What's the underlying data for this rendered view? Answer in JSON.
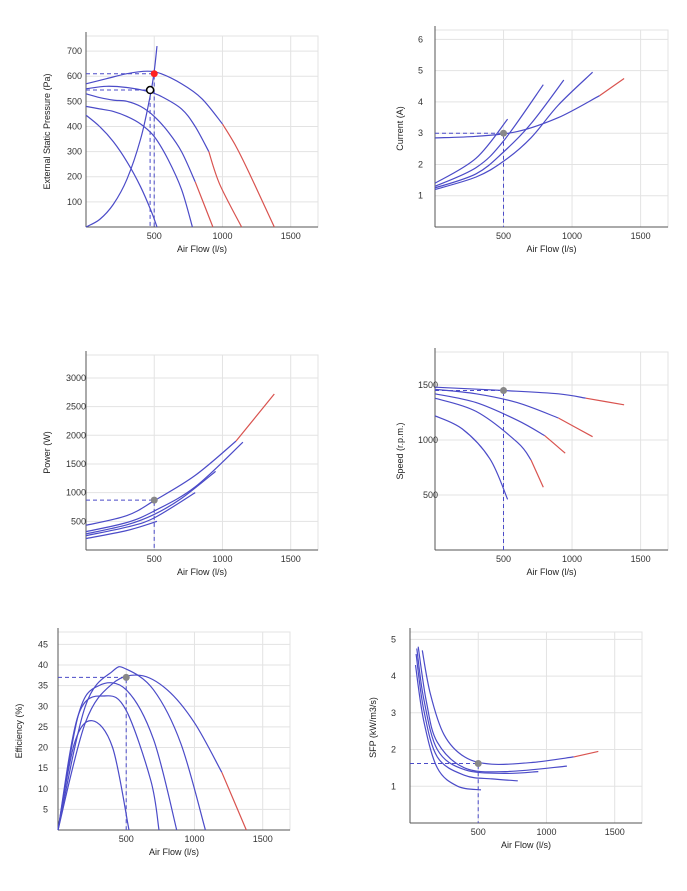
{
  "colors": {
    "curve": "#4b4bc8",
    "overload": "#d9534f",
    "guide": "#4b4bc8",
    "duty_point": "#ff2020",
    "operating_marker": "#888888"
  },
  "chart_data": [
    {
      "id": "pressure",
      "type": "line",
      "xlabel": "Air Flow (l/s)",
      "ylabel": "External Static Pressure (Pa)",
      "xlim": [
        0,
        1700
      ],
      "ylim": [
        0,
        760
      ],
      "xticks": [
        500,
        1000,
        1500
      ],
      "yticks": [
        100,
        200,
        300,
        400,
        500,
        600,
        700
      ],
      "grid": true,
      "series": [
        {
          "points": [
            [
              0,
              570
            ],
            [
              150,
              590
            ],
            [
              300,
              610
            ],
            [
              450,
              620
            ],
            [
              550,
              610
            ],
            [
              700,
              570
            ],
            [
              850,
              510
            ],
            [
              1000,
              410
            ],
            [
              1100,
              320
            ],
            [
              1200,
              210
            ]
          ],
          "overload_from": 950,
          "end": [
            1380,
            0
          ]
        },
        {
          "points": [
            [
              0,
              550
            ],
            [
              150,
              560
            ],
            [
              300,
              555
            ],
            [
              450,
              540
            ],
            [
              550,
              520
            ],
            [
              700,
              470
            ],
            [
              800,
              400
            ],
            [
              900,
              300
            ],
            [
              980,
              170
            ]
          ],
          "overload_from": 830,
          "end": [
            1140,
            0
          ]
        },
        {
          "points": [
            [
              0,
              530
            ],
            [
              100,
              515
            ],
            [
              200,
              505
            ],
            [
              300,
              500
            ],
            [
              400,
              480
            ],
            [
              500,
              440
            ],
            [
              600,
              380
            ],
            [
              700,
              300
            ],
            [
              800,
              180
            ]
          ],
          "overload_from": 780,
          "end": [
            930,
            0
          ]
        },
        {
          "points": [
            [
              0,
              480
            ],
            [
              100,
              470
            ],
            [
              200,
              460
            ],
            [
              300,
              440
            ],
            [
              400,
              410
            ],
            [
              500,
              360
            ],
            [
              600,
              270
            ],
            [
              700,
              150
            ],
            [
              780,
              0
            ]
          ]
        },
        {
          "points": [
            [
              0,
              445
            ],
            [
              100,
              400
            ],
            [
              200,
              340
            ],
            [
              300,
              260
            ],
            [
              400,
              160
            ],
            [
              480,
              60
            ],
            [
              520,
              0
            ]
          ]
        },
        {
          "points": [
            [
              0,
              0
            ],
            [
              100,
              30
            ],
            [
              200,
              90
            ],
            [
              300,
              190
            ],
            [
              400,
              350
            ],
            [
              470,
              520
            ],
            [
              500,
              620
            ],
            [
              520,
              720
            ]
          ]
        }
      ],
      "operating_point": {
        "x": 500,
        "y": 610
      },
      "required_point": {
        "x": 470,
        "y": 545
      }
    },
    {
      "id": "current",
      "type": "line",
      "xlabel": "Air Flow (l/s)",
      "ylabel": "Current (A)",
      "xlim": [
        0,
        1700
      ],
      "ylim": [
        0,
        6.3
      ],
      "xticks": [
        500,
        1000,
        1500
      ],
      "yticks": [
        1,
        2,
        3,
        4,
        5,
        6
      ],
      "grid": true,
      "series": [
        {
          "points": [
            [
              0,
              2.85
            ],
            [
              300,
              2.9
            ],
            [
              600,
              3.05
            ],
            [
              900,
              3.5
            ],
            [
              1200,
              4.2
            ],
            [
              1380,
              4.75
            ]
          ],
          "overload_from": 1100
        },
        {
          "points": [
            [
              0,
              1.2
            ],
            [
              300,
              1.6
            ],
            [
              500,
              2.1
            ],
            [
              700,
              2.85
            ],
            [
              900,
              3.9
            ],
            [
              1150,
              4.95
            ]
          ],
          "overload_from": 950
        },
        {
          "points": [
            [
              0,
              1.25
            ],
            [
              300,
              1.7
            ],
            [
              500,
              2.4
            ],
            [
              700,
              3.3
            ],
            [
              940,
              4.7
            ]
          ],
          "overload_from": 780
        },
        {
          "points": [
            [
              0,
              1.3
            ],
            [
              300,
              1.9
            ],
            [
              500,
              2.75
            ],
            [
              790,
              4.55
            ]
          ],
          "overload_from": 650
        },
        {
          "points": [
            [
              0,
              1.4
            ],
            [
              300,
              2.2
            ],
            [
              530,
              3.45
            ]
          ]
        }
      ],
      "operating_point": {
        "x": 500,
        "y": 3.0
      }
    },
    {
      "id": "power",
      "type": "line",
      "xlabel": "Air Flow (l/s)",
      "ylabel": "Power (W)",
      "xlim": [
        0,
        1700
      ],
      "ylim": [
        0,
        3400
      ],
      "xticks": [
        500,
        1000,
        1500
      ],
      "yticks": [
        500,
        1000,
        1500,
        2000,
        2500,
        3000
      ],
      "grid": true,
      "series": [
        {
          "points": [
            [
              0,
              430
            ],
            [
              300,
              600
            ],
            [
              500,
              860
            ],
            [
              800,
              1300
            ],
            [
              1100,
              1900
            ],
            [
              1380,
              2720
            ]
          ],
          "overload_from": 1050
        },
        {
          "points": [
            [
              0,
              320
            ],
            [
              300,
              480
            ],
            [
              500,
              680
            ],
            [
              800,
              1100
            ],
            [
              1150,
              1880
            ]
          ],
          "overload_from": 980
        },
        {
          "points": [
            [
              0,
              280
            ],
            [
              300,
              440
            ],
            [
              500,
              620
            ],
            [
              700,
              900
            ],
            [
              950,
              1370
            ]
          ],
          "overload_from": 820
        },
        {
          "points": [
            [
              0,
              250
            ],
            [
              300,
              400
            ],
            [
              500,
              560
            ],
            [
              800,
              1000
            ]
          ],
          "overload_from": 680
        },
        {
          "points": [
            [
              0,
              200
            ],
            [
              300,
              340
            ],
            [
              520,
              500
            ]
          ]
        }
      ],
      "operating_point": {
        "x": 500,
        "y": 870
      }
    },
    {
      "id": "speed",
      "type": "line",
      "xlabel": "Air Flow (l/s)",
      "ylabel": "Speed (r.p.m.)",
      "xlim": [
        0,
        1700
      ],
      "ylim": [
        0,
        1800
      ],
      "xticks": [
        500,
        1000,
        1500
      ],
      "yticks": [
        500,
        1000,
        1500
      ],
      "grid": true,
      "series": [
        {
          "points": [
            [
              0,
              1480
            ],
            [
              500,
              1450
            ],
            [
              900,
              1420
            ],
            [
              1100,
              1380
            ],
            [
              1380,
              1320
            ]
          ],
          "overload_from": 1100
        },
        {
          "points": [
            [
              0,
              1460
            ],
            [
              300,
              1420
            ],
            [
              600,
              1340
            ],
            [
              900,
              1200
            ],
            [
              1150,
              1030
            ]
          ],
          "overload_from": 900
        },
        {
          "points": [
            [
              0,
              1420
            ],
            [
              300,
              1340
            ],
            [
              600,
              1180
            ],
            [
              800,
              1040
            ],
            [
              950,
              880
            ]
          ],
          "overload_from": 800
        },
        {
          "points": [
            [
              0,
              1380
            ],
            [
              300,
              1260
            ],
            [
              600,
              980
            ],
            [
              700,
              820
            ],
            [
              790,
              570
            ]
          ],
          "overload_from": 680
        },
        {
          "points": [
            [
              0,
              1220
            ],
            [
              200,
              1100
            ],
            [
              400,
              830
            ],
            [
              530,
              460
            ]
          ]
        }
      ],
      "operating_point": {
        "x": 500,
        "y": 1450
      }
    },
    {
      "id": "efficiency",
      "type": "line",
      "xlabel": "Air Flow (l/s)",
      "ylabel": "Efficiency (%)",
      "xlim": [
        0,
        1700
      ],
      "ylim": [
        0,
        48
      ],
      "xticks": [
        500,
        1000,
        1500
      ],
      "yticks": [
        5,
        10,
        15,
        20,
        25,
        30,
        35,
        40,
        45
      ],
      "grid": true,
      "series": [
        {
          "points": [
            [
              0,
              0
            ],
            [
              200,
              26
            ],
            [
              400,
              35.5
            ],
            [
              600,
              37.5
            ],
            [
              800,
              34
            ],
            [
              1000,
              26
            ],
            [
              1200,
              14
            ],
            [
              1380,
              0
            ]
          ],
          "overload_from": 1150
        },
        {
          "points": [
            [
              0,
              0
            ],
            [
              200,
              30
            ],
            [
              400,
              38.5
            ],
            [
              500,
              39
            ],
            [
              700,
              34
            ],
            [
              900,
              21
            ],
            [
              1080,
              0
            ]
          ],
          "overload_from": 1000
        },
        {
          "points": [
            [
              0,
              0
            ],
            [
              150,
              28
            ],
            [
              300,
              35
            ],
            [
              500,
              34
            ],
            [
              700,
              22
            ],
            [
              870,
              0
            ]
          ],
          "overload_from": 800
        },
        {
          "points": [
            [
              0,
              0
            ],
            [
              150,
              28
            ],
            [
              350,
              32.5
            ],
            [
              500,
              29
            ],
            [
              680,
              12
            ],
            [
              740,
              0
            ]
          ]
        },
        {
          "points": [
            [
              0,
              0
            ],
            [
              120,
              21
            ],
            [
              250,
              26.5
            ],
            [
              400,
              20
            ],
            [
              520,
              0
            ]
          ]
        }
      ],
      "operating_point": {
        "x": 500,
        "y": 37
      }
    },
    {
      "id": "sfp",
      "type": "line",
      "xlabel": "Air Flow (l/s)",
      "ylabel": "SFP (kW/m3/s)",
      "xlim": [
        0,
        1700
      ],
      "ylim": [
        0,
        5.2
      ],
      "xticks": [
        500,
        1000,
        1500
      ],
      "yticks": [
        1,
        2,
        3,
        4,
        5
      ],
      "grid": true,
      "series": [
        {
          "points": [
            [
              90,
              4.7
            ],
            [
              150,
              3.5
            ],
            [
              250,
              2.4
            ],
            [
              400,
              1.8
            ],
            [
              600,
              1.6
            ],
            [
              900,
              1.65
            ],
            [
              1200,
              1.8
            ],
            [
              1380,
              1.95
            ]
          ],
          "overload_from": 1050
        },
        {
          "points": [
            [
              60,
              4.8
            ],
            [
              120,
              3.3
            ],
            [
              200,
              2.2
            ],
            [
              400,
              1.5
            ],
            [
              700,
              1.4
            ],
            [
              1150,
              1.55
            ]
          ],
          "overload_from": 950
        },
        {
          "points": [
            [
              50,
              4.75
            ],
            [
              100,
              3.4
            ],
            [
              200,
              2.0
            ],
            [
              400,
              1.45
            ],
            [
              700,
              1.35
            ],
            [
              940,
              1.4
            ]
          ],
          "overload_from": 800
        },
        {
          "points": [
            [
              45,
              4.6
            ],
            [
              100,
              3.1
            ],
            [
              200,
              1.8
            ],
            [
              400,
              1.3
            ],
            [
              600,
              1.2
            ],
            [
              790,
              1.15
            ]
          ],
          "overload_from": 700
        },
        {
          "points": [
            [
              40,
              4.3
            ],
            [
              100,
              2.8
            ],
            [
              200,
              1.5
            ],
            [
              350,
              1.0
            ],
            [
              520,
              0.9
            ]
          ]
        }
      ],
      "operating_point": {
        "x": 500,
        "y": 1.62
      }
    }
  ]
}
